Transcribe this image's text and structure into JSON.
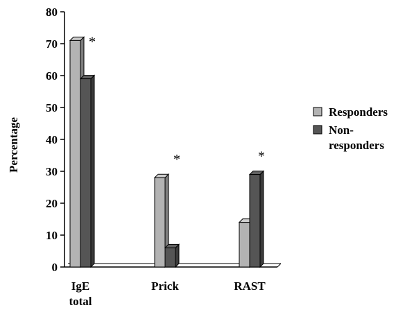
{
  "chart_data": {
    "type": "bar",
    "categories": [
      "IgE total",
      "Prick",
      "RAST"
    ],
    "category_label_lines": [
      [
        "IgE",
        "total"
      ],
      [
        "Prick"
      ],
      [
        "RAST"
      ]
    ],
    "series": [
      {
        "name": "Responders",
        "values": [
          71,
          28,
          14
        ],
        "color": "#b3b3b3"
      },
      {
        "name": "Non-responders",
        "values": [
          59,
          6,
          29
        ],
        "color": "#555555"
      }
    ],
    "legend_label_lines": [
      [
        "Responders"
      ],
      [
        "Non-",
        "responders"
      ]
    ],
    "ylabel": "Percentage",
    "xlabel": "",
    "title": "",
    "ylim": [
      0,
      80
    ],
    "yticks": [
      0,
      10,
      20,
      30,
      40,
      50,
      60,
      70,
      80
    ],
    "annotations": [
      "*",
      "*",
      "*"
    ],
    "grid": false,
    "legend_position": "right",
    "style": "3d-bar"
  }
}
